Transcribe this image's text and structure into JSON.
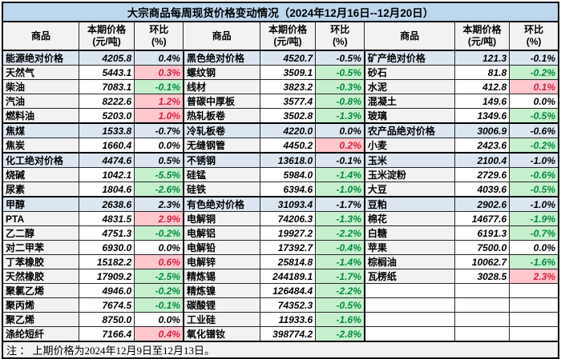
{
  "title": "大宗商品每周现货价格变动情况（2024年12月16日--12月20日）",
  "header": {
    "commodity": "商品",
    "price_line1": "本期价格",
    "price_line2": "(元/吨)",
    "chg_line1": "环比",
    "chg_line2": "(%)"
  },
  "note": "注 ： 上期价格为2024年12月9日至12月13日。",
  "colors": {
    "title_bg": "#BDD7EE",
    "header_bg": "#F2F2F2",
    "category_bg": "#DCE6F1",
    "name_bg": "#F2F2F2",
    "up_bg": "#FFC7CE",
    "up_fg": "#D81E3C",
    "down_bg": "#C6EFCE",
    "down_fg": "#008C3C"
  },
  "groups": [
    {
      "rows": [
        {
          "name": "能源绝对价格",
          "price": "4205.8",
          "chg": "0.4%",
          "kind": "category",
          "chg_style": "cat"
        },
        {
          "name": "天然气",
          "price": "5443.1",
          "chg": "0.3%",
          "kind": "item",
          "chg_style": "up"
        },
        {
          "name": "柴油",
          "price": "7083.1",
          "chg": "-0.1%",
          "kind": "item",
          "chg_style": "down"
        },
        {
          "name": "汽油",
          "price": "8222.6",
          "chg": "1.2%",
          "kind": "item",
          "chg_style": "up"
        },
        {
          "name": "燃料油",
          "price": "5203.0",
          "chg": "1.0%",
          "kind": "item",
          "chg_style": "up"
        },
        {
          "name": "焦煤",
          "price": "1533.8",
          "chg": "-0.7%",
          "kind": "item",
          "chg_style": "down"
        },
        {
          "name": "焦炭",
          "price": "1660.4",
          "chg": "0.0%",
          "kind": "item",
          "chg_style": "flat"
        },
        {
          "name": "化工绝对价格",
          "price": "4474.6",
          "chg": "0.5%",
          "kind": "category",
          "chg_style": "cat"
        },
        {
          "name": "烧碱",
          "price": "1042.1",
          "chg": "-5.5%",
          "kind": "item",
          "chg_style": "down"
        },
        {
          "name": "尿素",
          "price": "1804.6",
          "chg": "-2.6%",
          "kind": "item",
          "chg_style": "down"
        },
        {
          "name": "甲醇",
          "price": "2638.6",
          "chg": "2.3%",
          "kind": "item",
          "chg_style": "up"
        },
        {
          "name": "PTA",
          "price": "4831.5",
          "chg": "2.9%",
          "kind": "item",
          "chg_style": "up"
        },
        {
          "name": "乙二醇",
          "price": "4751.3",
          "chg": "-0.2%",
          "kind": "item",
          "chg_style": "down"
        },
        {
          "name": "对二甲苯",
          "price": "6930.0",
          "chg": "0.0%",
          "kind": "item",
          "chg_style": "flat"
        },
        {
          "name": "丁苯橡胶",
          "price": "15182.2",
          "chg": "0.6%",
          "kind": "item",
          "chg_style": "up"
        },
        {
          "name": "天然橡胶",
          "price": "17909.2",
          "chg": "-2.5%",
          "kind": "item",
          "chg_style": "down"
        },
        {
          "name": "聚氯乙烯",
          "price": "4946.0",
          "chg": "-0.2%",
          "kind": "item",
          "chg_style": "down"
        },
        {
          "name": "聚丙烯",
          "price": "7674.5",
          "chg": "-0.1%",
          "kind": "item",
          "chg_style": "down"
        },
        {
          "name": "聚乙烯",
          "price": "8750.0",
          "chg": "0.0%",
          "kind": "item",
          "chg_style": "flat"
        },
        {
          "name": "涤纶短纤",
          "price": "7166.4",
          "chg": "0.4%",
          "kind": "item",
          "chg_style": "up"
        }
      ]
    },
    {
      "rows": [
        {
          "name": "黑色绝对价格",
          "price": "4520.7",
          "chg": "-0.5%",
          "kind": "category",
          "chg_style": "cat"
        },
        {
          "name": "螺纹钢",
          "price": "3509.1",
          "chg": "-0.5%",
          "kind": "item",
          "chg_style": "down"
        },
        {
          "name": "线材",
          "price": "3823.2",
          "chg": "-0.3%",
          "kind": "item",
          "chg_style": "down"
        },
        {
          "name": "普碳中厚板",
          "price": "3577.4",
          "chg": "-0.8%",
          "kind": "item",
          "chg_style": "down"
        },
        {
          "name": "热轧板卷",
          "price": "3502.8",
          "chg": "-1.3%",
          "kind": "item",
          "chg_style": "down"
        },
        {
          "name": "冷轧板卷",
          "price": "4220.0",
          "chg": "0.0%",
          "kind": "item",
          "chg_style": "down"
        },
        {
          "name": "无缝钢管",
          "price": "4450.2",
          "chg": "0.2%",
          "kind": "item",
          "chg_style": "up"
        },
        {
          "name": "不锈钢",
          "price": "13618.0",
          "chg": "-0.1%",
          "kind": "item",
          "chg_style": "down"
        },
        {
          "name": "硅锰",
          "price": "5984.0",
          "chg": "-1.4%",
          "kind": "item",
          "chg_style": "down"
        },
        {
          "name": "硅铁",
          "price": "6394.6",
          "chg": "-1.0%",
          "kind": "item",
          "chg_style": "down"
        },
        {
          "name": "有色绝对价格",
          "price": "31093.4",
          "chg": "-1.7%",
          "kind": "category",
          "chg_style": "cat"
        },
        {
          "name": "电解铜",
          "price": "74206.3",
          "chg": "-1.3%",
          "kind": "item",
          "chg_style": "down"
        },
        {
          "name": "电解铝",
          "price": "19927.2",
          "chg": "-2.2%",
          "kind": "item",
          "chg_style": "down"
        },
        {
          "name": "电解铅",
          "price": "17392.7",
          "chg": "-0.4%",
          "kind": "item",
          "chg_style": "down"
        },
        {
          "name": "电解锌",
          "price": "25814.8",
          "chg": "-1.4%",
          "kind": "item",
          "chg_style": "down"
        },
        {
          "name": "精炼锡",
          "price": "244189.1",
          "chg": "-1.7%",
          "kind": "item",
          "chg_style": "down"
        },
        {
          "name": "精炼镍",
          "price": "126484.4",
          "chg": "-2.2%",
          "kind": "item",
          "chg_style": "down"
        },
        {
          "name": "碳酸锂",
          "price": "74352.3",
          "chg": "-0.5%",
          "kind": "item",
          "chg_style": "down"
        },
        {
          "name": "工业硅",
          "price": "11933.6",
          "chg": "-1.6%",
          "kind": "item",
          "chg_style": "down"
        },
        {
          "name": "氧化镨钕",
          "price": "398774.2",
          "chg": "-2.8%",
          "kind": "item",
          "chg_style": "down"
        }
      ]
    },
    {
      "rows": [
        {
          "name": "矿产绝对价格",
          "price": "121.3",
          "chg": "-0.1%",
          "kind": "category",
          "chg_style": "cat"
        },
        {
          "name": "砂石",
          "price": "81.8",
          "chg": "-0.2%",
          "kind": "item",
          "chg_style": "down"
        },
        {
          "name": "水泥",
          "price": "412.8",
          "chg": "0.1%",
          "kind": "item",
          "chg_style": "up"
        },
        {
          "name": "混凝土",
          "price": "149.6",
          "chg": "0.0%",
          "kind": "item",
          "chg_style": "flat"
        },
        {
          "name": "玻璃",
          "price": "1349.6",
          "chg": "-0.5%",
          "kind": "item",
          "chg_style": "down"
        },
        {
          "name": "农产品绝对价格",
          "price": "3006.9",
          "chg": "-0.6%",
          "kind": "category",
          "chg_style": "cat"
        },
        {
          "name": "小麦",
          "price": "2423.6",
          "chg": "-0.2%",
          "kind": "item",
          "chg_style": "down"
        },
        {
          "name": "玉米",
          "price": "2100.4",
          "chg": "-1.0%",
          "kind": "item",
          "chg_style": "down"
        },
        {
          "name": "玉米淀粉",
          "price": "2729.6",
          "chg": "-0.6%",
          "kind": "item",
          "chg_style": "down"
        },
        {
          "name": "大豆",
          "price": "4039.6",
          "chg": "-0.5%",
          "kind": "item",
          "chg_style": "down"
        },
        {
          "name": "豆粕",
          "price": "2902.6",
          "chg": "-1.0%",
          "kind": "item",
          "chg_style": "down"
        },
        {
          "name": "棉花",
          "price": "14677.6",
          "chg": "-1.9%",
          "kind": "item",
          "chg_style": "down"
        },
        {
          "name": "白糖",
          "price": "6191.3",
          "chg": "-0.7%",
          "kind": "item",
          "chg_style": "down"
        },
        {
          "name": "苹果",
          "price": "7500.0",
          "chg": "0.0%",
          "kind": "item",
          "chg_style": "flat"
        },
        {
          "name": "棕榈油",
          "price": "10062.7",
          "chg": "-1.6%",
          "kind": "item",
          "chg_style": "down"
        },
        {
          "name": "瓦楞纸",
          "price": "3028.5",
          "chg": "2.3%",
          "kind": "item",
          "chg_style": "up"
        },
        {
          "name": "",
          "price": "",
          "chg": "",
          "kind": "empty",
          "chg_style": "flat"
        },
        {
          "name": "",
          "price": "",
          "chg": "",
          "kind": "empty",
          "chg_style": "flat"
        },
        {
          "name": "",
          "price": "",
          "chg": "",
          "kind": "empty",
          "chg_style": "flat"
        },
        {
          "name": "",
          "price": "",
          "chg": "",
          "kind": "empty",
          "chg_style": "flat"
        }
      ]
    }
  ]
}
